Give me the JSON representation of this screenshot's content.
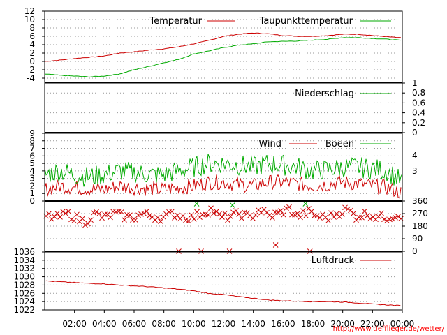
{
  "colors": {
    "red": "#cc0000",
    "green": "#00aa00",
    "grid": "#999999",
    "frame": "#000000",
    "credit": "#ff0000"
  },
  "credit": "http://www.tiefflieger.de/wetter/",
  "x_axis": {
    "labels": [
      "02:00",
      "04:00",
      "06:00",
      "08:00",
      "10:00",
      "12:00",
      "14:00",
      "16:00",
      "18:00",
      "20:00",
      "22:00",
      "00:00"
    ]
  },
  "chart_data": [
    {
      "type": "line",
      "panel": "temperature",
      "ylim": [
        -5,
        12
      ],
      "yticks": [
        -4,
        -2,
        0,
        2,
        4,
        6,
        8,
        10,
        12
      ],
      "x_hours": [
        0,
        1,
        2,
        3,
        4,
        5,
        6,
        7,
        8,
        9,
        10,
        11,
        12,
        13,
        14,
        15,
        16,
        17,
        18,
        19,
        20,
        21,
        22,
        23,
        24
      ],
      "series": [
        {
          "name": "Temperatur",
          "color": "#cc0000",
          "values": [
            0,
            0.3,
            0.7,
            1.0,
            1.3,
            2.0,
            2.3,
            2.7,
            3.0,
            3.5,
            4.2,
            5.0,
            6.0,
            6.5,
            6.8,
            6.6,
            6.2,
            6.0,
            6.0,
            6.2,
            6.5,
            6.5,
            6.2,
            5.9,
            5.6
          ]
        },
        {
          "name": "Taupunkttemperatur",
          "color": "#00aa00",
          "values": [
            -3.0,
            -3.3,
            -3.5,
            -3.7,
            -3.5,
            -3.0,
            -2.0,
            -1.2,
            -0.3,
            0.5,
            1.8,
            2.5,
            3.3,
            3.9,
            4.2,
            4.7,
            4.8,
            4.9,
            5.1,
            5.3,
            5.7,
            5.7,
            5.5,
            5.3,
            5.0
          ]
        }
      ]
    },
    {
      "type": "line",
      "panel": "precipitation",
      "ylim": [
        0,
        1
      ],
      "yticks": [
        0,
        0.2,
        0.4,
        0.6,
        0.8,
        1
      ],
      "series": [
        {
          "name": "Niederschlag",
          "color": "#00aa00",
          "values": []
        }
      ]
    },
    {
      "type": "line",
      "panel": "wind",
      "ylim": [
        0,
        9
      ],
      "yticks": [
        0,
        1,
        2,
        3,
        4,
        5,
        6,
        7,
        8,
        9
      ],
      "right_ticks": [
        "4",
        "3"
      ],
      "x_hours": [
        0,
        1,
        2,
        3,
        4,
        5,
        6,
        7,
        8,
        9,
        10,
        11,
        12,
        13,
        14,
        15,
        16,
        17,
        18,
        19,
        20,
        21,
        22,
        23,
        24
      ],
      "series": [
        {
          "name": "Wind",
          "color": "#cc0000",
          "values": [
            1.5,
            2.0,
            1.8,
            1.6,
            1.5,
            2.0,
            1.8,
            1.6,
            1.5,
            1.8,
            2.0,
            2.5,
            2.5,
            2.2,
            2.0,
            2.5,
            2.5,
            2.3,
            2.0,
            2.2,
            2.5,
            2.3,
            2.0,
            1.8,
            1.0
          ]
        },
        {
          "name": "Boeen",
          "color": "#00aa00",
          "values": [
            3.5,
            4.0,
            3.5,
            3.2,
            3.5,
            4.0,
            3.8,
            3.5,
            3.5,
            4.0,
            4.5,
            5.0,
            5.0,
            4.8,
            4.5,
            5.0,
            4.8,
            4.5,
            4.0,
            4.2,
            4.5,
            4.5,
            4.3,
            4.0,
            2.5
          ]
        }
      ]
    },
    {
      "type": "scatter",
      "panel": "wind-direction",
      "ylim": [
        0,
        360
      ],
      "yticks": [
        0,
        90,
        180,
        270,
        360
      ],
      "x_hours": [
        0.2,
        0.8,
        1.5,
        2.1,
        2.7,
        3.4,
        4.0,
        4.7,
        5.3,
        6.0,
        6.6,
        7.3,
        8.0,
        8.6,
        9.2,
        9.9,
        10.5,
        11.2,
        11.8,
        12.5,
        13.1,
        13.8,
        14.4,
        15.1,
        15.7,
        16.4,
        17.0,
        17.7,
        18.3,
        19.0,
        19.6,
        20.3,
        20.9,
        21.6,
        22.2,
        22.9,
        23.5
      ],
      "values": [
        250,
        240,
        270,
        240,
        210,
        270,
        240,
        270,
        250,
        240,
        270,
        250,
        240,
        270,
        250,
        240,
        270,
        300,
        240,
        250,
        270,
        240,
        300,
        250,
        270,
        300,
        250,
        280,
        250,
        240,
        270,
        300,
        250,
        270,
        250,
        240,
        260
      ],
      "markers": [
        {
          "x": 9.0,
          "y": 0,
          "color": "#cc0000"
        },
        {
          "x": 10.5,
          "y": 0,
          "color": "#cc0000"
        },
        {
          "x": 12.4,
          "y": 0,
          "color": "#cc0000"
        },
        {
          "x": 17.8,
          "y": 0,
          "color": "#cc0000"
        },
        {
          "x": 15.5,
          "y": 45,
          "color": "#cc0000"
        },
        {
          "x": 10.2,
          "y": 340,
          "color": "#00aa00"
        },
        {
          "x": 12.6,
          "y": 330,
          "color": "#00aa00"
        },
        {
          "x": 17.5,
          "y": 340,
          "color": "#00aa00"
        }
      ]
    },
    {
      "type": "line",
      "panel": "pressure",
      "ylim": [
        1022,
        1036
      ],
      "yticks": [
        1022,
        1024,
        1026,
        1028,
        1030,
        1032,
        1034,
        1036
      ],
      "x_hours": [
        0,
        1,
        2,
        3,
        4,
        5,
        6,
        7,
        8,
        9,
        10,
        11,
        12,
        13,
        14,
        15,
        16,
        17,
        18,
        19,
        20,
        21,
        22,
        23,
        24
      ],
      "series": [
        {
          "name": "Luftdruck",
          "color": "#cc0000",
          "values": [
            1029.0,
            1028.8,
            1028.6,
            1028.4,
            1028.3,
            1028.0,
            1027.8,
            1027.6,
            1027.3,
            1027.0,
            1026.6,
            1026.0,
            1025.7,
            1025.2,
            1024.8,
            1024.4,
            1024.2,
            1024.1,
            1024.0,
            1024.0,
            1023.9,
            1023.7,
            1023.4,
            1023.2,
            1023.0
          ]
        }
      ]
    }
  ]
}
